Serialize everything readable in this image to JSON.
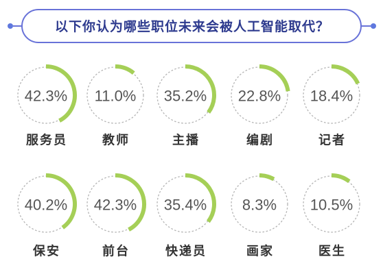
{
  "colors": {
    "background": "#ffffff",
    "banner_border": "#6872d8",
    "banner_dot": "#5f78de",
    "title_text": "#2d3a8e",
    "gauge_arc": "#a5cf57",
    "gauge_track": "#b3b3b3",
    "value_text": "#555555",
    "category_text": "#333333"
  },
  "chart_data": {
    "type": "pie",
    "title": "以下你认为哪些职位未来会被人工智能取代？",
    "value_max": 100,
    "categories": [
      "服务员",
      "教师",
      "主播",
      "编剧",
      "记者",
      "保安",
      "前台",
      "快递员",
      "画家",
      "医生"
    ],
    "values": [
      42.3,
      11.0,
      35.2,
      22.8,
      18.4,
      40.2,
      42.3,
      35.4,
      8.3,
      10.5
    ],
    "data_labels": [
      "42.3%",
      "11.0%",
      "35.2%",
      "22.8%",
      "18.4%",
      "40.2%",
      "42.3%",
      "35.4%",
      "8.3%",
      "10.5%"
    ]
  }
}
